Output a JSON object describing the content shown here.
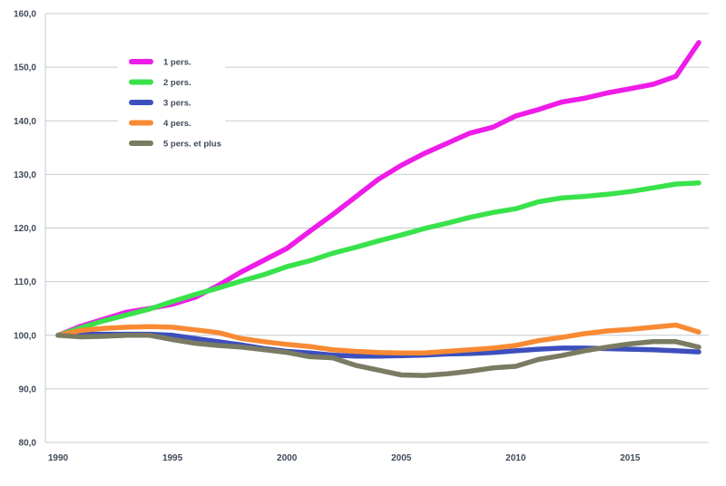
{
  "chart_data": {
    "type": "line",
    "title": "",
    "xlabel": "",
    "ylabel": "",
    "xlim": [
      1990,
      2018
    ],
    "ylim": [
      80,
      160
    ],
    "x_ticks": [
      "1990",
      "1995",
      "2000",
      "2005",
      "2010",
      "2015"
    ],
    "y_ticks": [
      "80,0",
      "90,0",
      "100,0",
      "110,0",
      "120,0",
      "130,0",
      "140,0",
      "150,0",
      "160,0"
    ],
    "grid": "horizontal",
    "legend_position": "top-left",
    "x": [
      1990,
      1991,
      1992,
      1993,
      1994,
      1995,
      1996,
      1997,
      1998,
      1999,
      2000,
      2001,
      2002,
      2003,
      2004,
      2005,
      2006,
      2007,
      2008,
      2009,
      2010,
      2011,
      2012,
      2013,
      2014,
      2015,
      2016,
      2017,
      2018
    ],
    "series": [
      {
        "name": "1 pers.",
        "color": "#ee1ce8",
        "values": [
          100,
          101.7,
          103,
          104.3,
          105,
          105.8,
          107.1,
          109.3,
          111.8,
          114,
          116.2,
          119.4,
          122.5,
          125.8,
          129.1,
          131.7,
          133.9,
          135.8,
          137.7,
          138.8,
          140.9,
          142.1,
          143.5,
          144.2,
          145.2,
          146,
          146.8,
          148.3,
          154.6
        ]
      },
      {
        "name": "2 pers.",
        "color": "#39e24b",
        "values": [
          100,
          101.4,
          102.7,
          103.8,
          104.9,
          106.3,
          107.6,
          108.8,
          110.1,
          111.3,
          112.8,
          113.9,
          115.3,
          116.4,
          117.6,
          118.7,
          119.9,
          120.9,
          122,
          122.9,
          123.6,
          124.9,
          125.6,
          125.9,
          126.3,
          126.8,
          127.5,
          128.2,
          128.4
        ]
      },
      {
        "name": "3 pers.",
        "color": "#3d4fbd",
        "values": [
          100,
          100.2,
          100.2,
          100.2,
          100.2,
          100,
          99.4,
          98.8,
          98.2,
          97.5,
          97,
          96.7,
          96.3,
          96.1,
          96.1,
          96.2,
          96.3,
          96.5,
          96.6,
          96.8,
          97.1,
          97.4,
          97.6,
          97.6,
          97.5,
          97.4,
          97.3,
          97.1,
          96.9
        ]
      },
      {
        "name": "4 pers.",
        "color": "#f98a34",
        "values": [
          100,
          100.9,
          101.3,
          101.5,
          101.6,
          101.5,
          101,
          100.5,
          99.4,
          98.8,
          98.3,
          97.9,
          97.3,
          97,
          96.8,
          96.7,
          96.7,
          97,
          97.3,
          97.6,
          98.1,
          99,
          99.6,
          100.3,
          100.8,
          101.1,
          101.5,
          101.9,
          100.6
        ]
      },
      {
        "name": "5 pers. et plus",
        "color": "#7a7b62",
        "values": [
          100,
          99.7,
          99.8,
          100,
          100,
          99.2,
          98.5,
          98.1,
          97.8,
          97.3,
          96.8,
          96,
          95.8,
          94.4,
          93.5,
          92.6,
          92.5,
          92.8,
          93.3,
          93.9,
          94.2,
          95.5,
          96.2,
          97.1,
          97.8,
          98.4,
          98.8,
          98.8,
          97.8
        ]
      }
    ]
  }
}
